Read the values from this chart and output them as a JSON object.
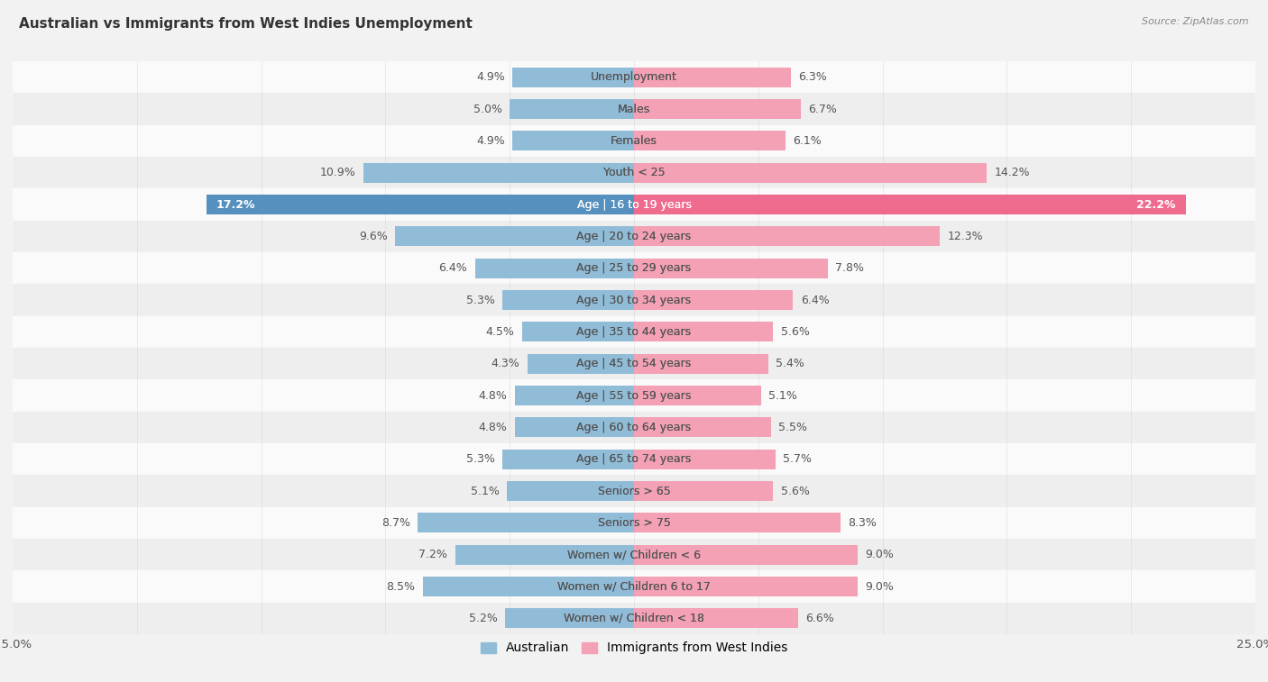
{
  "title": "Australian vs Immigrants from West Indies Unemployment",
  "source": "Source: ZipAtlas.com",
  "categories": [
    "Unemployment",
    "Males",
    "Females",
    "Youth < 25",
    "Age | 16 to 19 years",
    "Age | 20 to 24 years",
    "Age | 25 to 29 years",
    "Age | 30 to 34 years",
    "Age | 35 to 44 years",
    "Age | 45 to 54 years",
    "Age | 55 to 59 years",
    "Age | 60 to 64 years",
    "Age | 65 to 74 years",
    "Seniors > 65",
    "Seniors > 75",
    "Women w/ Children < 6",
    "Women w/ Children 6 to 17",
    "Women w/ Children < 18"
  ],
  "australian_values": [
    4.9,
    5.0,
    4.9,
    10.9,
    17.2,
    9.6,
    6.4,
    5.3,
    4.5,
    4.3,
    4.8,
    4.8,
    5.3,
    5.1,
    8.7,
    7.2,
    8.5,
    5.2
  ],
  "immigrant_values": [
    6.3,
    6.7,
    6.1,
    14.2,
    22.2,
    12.3,
    7.8,
    6.4,
    5.6,
    5.4,
    5.1,
    5.5,
    5.7,
    5.6,
    8.3,
    9.0,
    9.0,
    6.6
  ],
  "australian_color": "#90bcd8",
  "immigrant_color": "#f4a0b5",
  "australian_color_highlight": "#5590be",
  "immigrant_color_highlight": "#ef6b8e",
  "background_color": "#f2f2f2",
  "row_color_light": "#fafafa",
  "row_color_dark": "#eeeeee",
  "axis_max": 25.0,
  "bar_height": 0.62,
  "label_fontsize": 9.0,
  "title_fontsize": 11,
  "legend_fontsize": 10
}
